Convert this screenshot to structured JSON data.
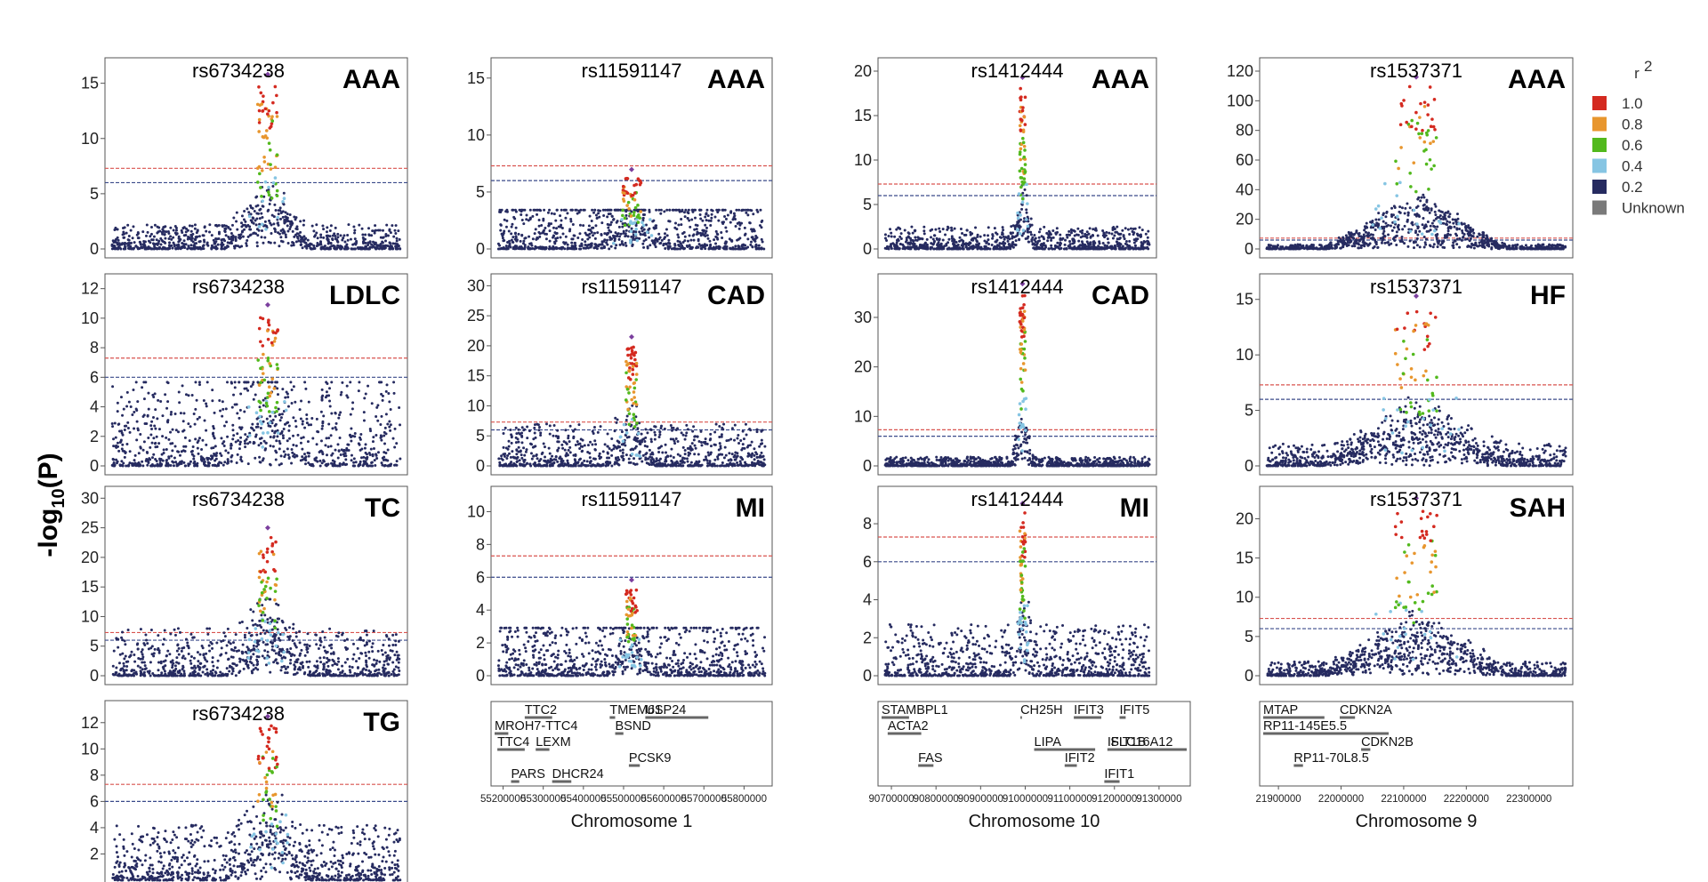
{
  "y_axis_label": "-log10(P)",
  "colors": {
    "r2_1.0": "#d42a20",
    "r2_0.8": "#e8962e",
    "r2_0.6": "#52b91d",
    "r2_0.4": "#86c5e3",
    "r2_0.2": "#262b60",
    "unknown": "#7a7a7a",
    "lead": "#7b3f9e",
    "sig_line": "#d9534f",
    "sugg_line": "#3a4a8a"
  },
  "legend": {
    "title": "r",
    "title_sup": "2",
    "items": [
      {
        "label": "1.0",
        "color": "#d42a20"
      },
      {
        "label": "0.8",
        "color": "#e8962e"
      },
      {
        "label": "0.6",
        "color": "#52b91d"
      },
      {
        "label": "0.4",
        "color": "#86c5e3"
      },
      {
        "label": "0.2",
        "color": "#262b60"
      },
      {
        "label": "Unknown",
        "color": "#7a7a7a"
      }
    ]
  },
  "chart_data": [
    {
      "type": "scatter",
      "col": 0,
      "row": 0,
      "snp": "rs6734238",
      "trait": "AAA",
      "ylim": [
        0,
        16.5
      ],
      "yticks": [
        0,
        5,
        10,
        15
      ],
      "peak_max": 15.0,
      "peak_center": 0.54,
      "peak_width": 0.05,
      "background_max": 2.2,
      "sig_threshold": 7.3,
      "suggestive_threshold": 6.0
    },
    {
      "type": "scatter",
      "col": 0,
      "row": 1,
      "snp": "rs6734238",
      "trait": "LDLC",
      "ylim": [
        0,
        12.4
      ],
      "yticks": [
        0,
        2,
        4,
        6,
        8,
        10,
        12
      ],
      "peak_max": 10.3,
      "peak_center": 0.54,
      "peak_width": 0.05,
      "background_max": 6.0,
      "sig_threshold": 7.3,
      "suggestive_threshold": 6.0
    },
    {
      "type": "scatter",
      "col": 0,
      "row": 2,
      "snp": "rs6734238",
      "trait": "TC",
      "ylim": [
        0,
        30.5
      ],
      "yticks": [
        0,
        5,
        10,
        15,
        20,
        25,
        30
      ],
      "peak_max": 23.5,
      "peak_center": 0.54,
      "peak_width": 0.05,
      "background_max": 8.0,
      "sig_threshold": 7.3,
      "suggestive_threshold": 6.0
    },
    {
      "type": "scatter",
      "col": 0,
      "row": 3,
      "snp": "rs6734238",
      "trait": "TG",
      "ylim": [
        0,
        13.0
      ],
      "yticks": [
        2,
        4,
        6,
        8,
        10,
        12
      ],
      "peak_max": 11.8,
      "peak_center": 0.54,
      "peak_width": 0.05,
      "background_max": 4.2,
      "sig_threshold": 7.3,
      "suggestive_threshold": 6.0
    },
    {
      "type": "scatter",
      "col": 1,
      "row": 0,
      "snp": "rs11591147",
      "trait": "AAA",
      "ylim": [
        0,
        16.0
      ],
      "yticks": [
        0,
        5,
        10,
        15
      ],
      "peak_max": 6.2,
      "peak_center": 0.5,
      "peak_width": 0.05,
      "background_max": 4.5,
      "sig_threshold": 7.3,
      "suggestive_threshold": 6.0
    },
    {
      "type": "scatter",
      "col": 1,
      "row": 1,
      "snp": "rs11591147",
      "trait": "CAD",
      "ylim": [
        0,
        30.5
      ],
      "yticks": [
        0,
        5,
        10,
        15,
        20,
        25,
        30
      ],
      "peak_max": 20.0,
      "peak_center": 0.5,
      "peak_width": 0.03,
      "background_max": 7.0,
      "sig_threshold": 7.3,
      "suggestive_threshold": 6.0
    },
    {
      "type": "scatter",
      "col": 1,
      "row": 2,
      "snp": "rs11591147",
      "trait": "MI",
      "ylim": [
        0,
        11.0
      ],
      "yticks": [
        0,
        2,
        4,
        6,
        8,
        10
      ],
      "peak_max": 5.3,
      "peak_center": 0.5,
      "peak_width": 0.03,
      "background_max": 3.5,
      "sig_threshold": 7.3,
      "suggestive_threshold": 6.0
    },
    {
      "type": "scatter",
      "col": 2,
      "row": 0,
      "snp": "rs1412444",
      "trait": "AAA",
      "ylim": [
        0,
        20.5
      ],
      "yticks": [
        0,
        5,
        10,
        15,
        20
      ],
      "peak_max": 18.3,
      "peak_center": 0.52,
      "peak_width": 0.015,
      "background_max": 2.5,
      "sig_threshold": 7.3,
      "suggestive_threshold": 6.0
    },
    {
      "type": "scatter",
      "col": 2,
      "row": 1,
      "snp": "rs1412444",
      "trait": "CAD",
      "ylim": [
        0,
        37.0
      ],
      "yticks": [
        0,
        10,
        20,
        30
      ],
      "peak_max": 35.0,
      "peak_center": 0.52,
      "peak_width": 0.015,
      "background_max": 1.8,
      "sig_threshold": 7.3,
      "suggestive_threshold": 6.0
    },
    {
      "type": "scatter",
      "col": 2,
      "row": 2,
      "snp": "rs1412444",
      "trait": "MI",
      "ylim": [
        0,
        9.5
      ],
      "yticks": [
        0,
        2,
        4,
        6,
        8
      ],
      "peak_max": 8.6,
      "peak_center": 0.52,
      "peak_width": 0.015,
      "background_max": 2.7,
      "sig_threshold": 7.3,
      "suggestive_threshold": 6.0
    },
    {
      "type": "scatter",
      "col": 3,
      "row": 0,
      "snp": "rs1537371",
      "trait": "AAA",
      "ylim": [
        0,
        123.0
      ],
      "yticks": [
        0,
        20,
        40,
        60,
        80,
        100,
        120
      ],
      "peak_max": 110.0,
      "peak_center": 0.5,
      "peak_width": 0.1,
      "background_max": 3.0,
      "sig_threshold": 7.3,
      "suggestive_threshold": 6.0
    },
    {
      "type": "scatter",
      "col": 3,
      "row": 1,
      "snp": "rs1537371",
      "trait": "HF",
      "ylim": [
        0,
        16.5
      ],
      "yticks": [
        0,
        5,
        10,
        15
      ],
      "peak_max": 14.5,
      "peak_center": 0.5,
      "peak_width": 0.1,
      "background_max": 2.0,
      "sig_threshold": 7.3,
      "suggestive_threshold": 6.0
    },
    {
      "type": "scatter",
      "col": 3,
      "row": 2,
      "snp": "rs1537371",
      "trait": "SAH",
      "ylim": [
        0,
        23.0
      ],
      "yticks": [
        0,
        5,
        10,
        15,
        20
      ],
      "peak_max": 21.5,
      "peak_center": 0.5,
      "peak_width": 0.1,
      "background_max": 1.8,
      "sig_threshold": 7.3,
      "suggestive_threshold": 6.0
    }
  ],
  "gene_tracks": [
    {
      "chromosome": "Chromosome 1",
      "xticks": [
        "55200000",
        "55300000",
        "55400000",
        "55500000",
        "55600000",
        "55700000",
        "55800000"
      ],
      "genes": [
        {
          "name": "TTC2",
          "start": 0.11,
          "end": 0.21,
          "row": 0
        },
        {
          "name": "TMEM61",
          "start": 0.42,
          "end": 0.44,
          "row": 0
        },
        {
          "name": "USP24",
          "start": 0.55,
          "end": 0.78,
          "row": 0
        },
        {
          "name": "MROH7-TTC4",
          "start": 0.0,
          "end": 0.05,
          "row": 1
        },
        {
          "name": "BSND",
          "start": 0.44,
          "end": 0.47,
          "row": 1
        },
        {
          "name": "TTC4",
          "start": 0.01,
          "end": 0.11,
          "row": 2
        },
        {
          "name": "LEXM",
          "start": 0.15,
          "end": 0.2,
          "row": 2
        },
        {
          "name": "PCSK9",
          "start": 0.49,
          "end": 0.53,
          "row": 3
        },
        {
          "name": "PARS",
          "start": 0.06,
          "end": 0.09,
          "row": 4
        },
        {
          "name": "DHCR24",
          "start": 0.21,
          "end": 0.28,
          "row": 4
        }
      ]
    },
    {
      "chromosome": "Chromosome 10",
      "xticks": [
        "90700000",
        "90800000",
        "90900000",
        "91000000",
        "91100000",
        "91200000",
        "91300000"
      ],
      "genes": [
        {
          "name": "STAMBPL1",
          "start": 0.0,
          "end": 0.09,
          "row": 0
        },
        {
          "name": "CH25H",
          "start": 0.455,
          "end": 0.46,
          "row": 0
        },
        {
          "name": "IFIT3",
          "start": 0.63,
          "end": 0.72,
          "row": 0
        },
        {
          "name": "IFIT5",
          "start": 0.78,
          "end": 0.8,
          "row": 0
        },
        {
          "name": "ACTA2",
          "start": 0.02,
          "end": 0.13,
          "row": 1
        },
        {
          "name": "LIPA",
          "start": 0.5,
          "end": 0.7,
          "row": 2
        },
        {
          "name": "SLC16A12",
          "start": 0.75,
          "end": 1.0,
          "row": 2
        },
        {
          "name": "IFIT1B",
          "start": 0.74,
          "end": 0.76,
          "row": 2
        },
        {
          "name": "FAS",
          "start": 0.12,
          "end": 0.17,
          "row": 3
        },
        {
          "name": "IFIT2",
          "start": 0.6,
          "end": 0.64,
          "row": 3
        },
        {
          "name": "IFIT1",
          "start": 0.73,
          "end": 0.78,
          "row": 4
        }
      ]
    },
    {
      "chromosome": "Chromosome 9",
      "xticks": [
        "21900000",
        "22000000",
        "22100000",
        "22200000",
        "22300000"
      ],
      "genes": [
        {
          "name": "MTAP",
          "start": 0.0,
          "end": 0.2,
          "row": 0
        },
        {
          "name": "CDKN2A",
          "start": 0.25,
          "end": 0.3,
          "row": 0
        },
        {
          "name": "RP11-145E5.5",
          "start": 0.0,
          "end": 0.41,
          "row": 1
        },
        {
          "name": "CDKN2B",
          "start": 0.32,
          "end": 0.35,
          "row": 2
        },
        {
          "name": "RP11-70L8.5",
          "start": 0.1,
          "end": 0.13,
          "row": 3
        }
      ]
    }
  ]
}
